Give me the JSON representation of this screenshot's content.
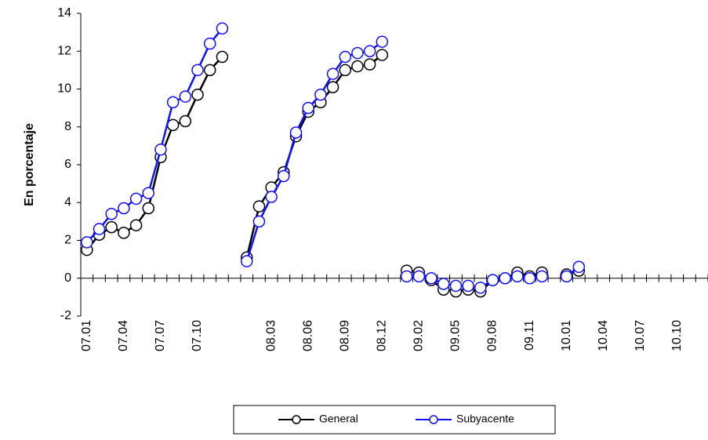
{
  "chart_data": {
    "type": "line",
    "y_label": "En porcentaje",
    "categories": [
      "07.01",
      null,
      null,
      "07.04",
      null,
      null,
      "07.07",
      null,
      null,
      "07.10",
      null,
      null,
      null,
      null,
      null,
      "08.03",
      null,
      null,
      "08.06",
      null,
      null,
      "08.09",
      null,
      null,
      "08.12",
      null,
      null,
      "09.02",
      null,
      null,
      "09.05",
      null,
      null,
      "09.08",
      null,
      null,
      "09.11",
      null,
      null,
      "10.01",
      null,
      null,
      "10.04",
      null,
      null,
      "10.07",
      null,
      null,
      "10.10",
      null,
      null
    ],
    "series": [
      {
        "name": "General",
        "color": "#000000",
        "values": [
          1.5,
          2.3,
          2.7,
          2.4,
          2.8,
          3.7,
          6.4,
          8.1,
          8.3,
          9.7,
          11.0,
          11.7,
          null,
          1.1,
          3.8,
          4.8,
          5.6,
          7.5,
          8.8,
          9.3,
          10.1,
          11.0,
          11.2,
          11.3,
          11.8,
          null,
          0.4,
          0.3,
          -0.1,
          -0.6,
          -0.7,
          -0.6,
          -0.7,
          -0.1,
          0.0,
          0.3,
          0.1,
          0.3,
          null,
          0.2,
          0.4,
          null,
          null,
          null,
          null,
          null,
          null,
          null,
          null,
          null,
          null
        ]
      },
      {
        "name": "Subyacente",
        "color": "#1010ff",
        "values": [
          1.9,
          2.6,
          3.4,
          3.7,
          4.2,
          4.5,
          6.8,
          9.3,
          9.6,
          11.0,
          12.4,
          13.2,
          null,
          0.9,
          3.0,
          4.3,
          5.4,
          7.7,
          9.0,
          9.7,
          10.8,
          11.7,
          11.9,
          12.0,
          12.5,
          null,
          0.1,
          0.1,
          0.0,
          -0.3,
          -0.4,
          -0.4,
          -0.5,
          -0.1,
          0.0,
          0.1,
          0.0,
          0.1,
          null,
          0.1,
          0.6,
          null,
          null,
          null,
          null,
          null,
          null,
          null,
          null,
          null,
          null
        ]
      }
    ],
    "ylim": [
      -2,
      14
    ],
    "yticks": [
      -2,
      0,
      2,
      4,
      6,
      8,
      10,
      12,
      14
    ]
  }
}
